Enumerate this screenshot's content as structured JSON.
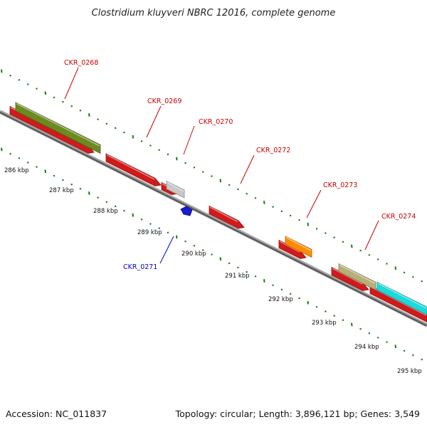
{
  "title": "Clostridium kluyveri NBRC 12016, complete genome",
  "footer": {
    "accession": "Accession: NC_011837",
    "summary": "Topology: circular; Length: 3,896,121 bp; Genes: 3,549"
  },
  "colors": {
    "backbone": "#808080",
    "tick": "#1a7a1a",
    "forward_label": "#cc0000",
    "reverse_label": "#0000cc"
  },
  "scale_labels": [
    "286 kbp",
    "287 kbp",
    "288 kbp",
    "289 kbp",
    "290 kbp",
    "291 kbp",
    "292 kbp",
    "293 kbp",
    "294 kbp",
    "295 kbp"
  ],
  "genes": [
    {
      "id": "CKR_0268",
      "label": "CKR_0268",
      "strand": "+",
      "color": "#d11a1a"
    },
    {
      "id": "CKR_0269",
      "label": "CKR_0269",
      "strand": "+",
      "color": "#d11a1a"
    },
    {
      "id": "CKR_0270",
      "label": "CKR_0270",
      "strand": "+",
      "color": "#d11a1a"
    },
    {
      "id": "CKR_0271",
      "label": "CKR_0271",
      "strand": "-",
      "color": "#1a1ad1"
    },
    {
      "id": "CKR_0272",
      "label": "CKR_0272",
      "strand": "+",
      "color": "#d11a1a"
    },
    {
      "id": "CKR_0273",
      "label": "CKR_0273",
      "strand": "+",
      "color": "#d11a1a"
    },
    {
      "id": "CKR_0274",
      "label": "CKR_0274",
      "strand": "+",
      "color": "#d11a1a"
    }
  ],
  "feature_colors": {
    "olive": "#6b8a22",
    "gray": "#c8c8c8",
    "orange": "#ff8c00",
    "khaki": "#b5b078",
    "cyan": "#1adada"
  }
}
